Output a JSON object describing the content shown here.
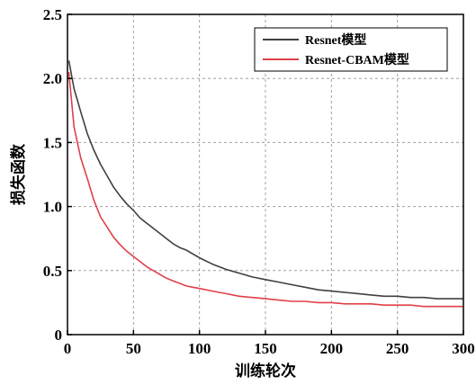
{
  "chart_data": {
    "type": "line",
    "title": "",
    "xlabel": "训练轮次",
    "ylabel": "损失函数",
    "xlim": [
      0,
      300
    ],
    "ylim": [
      0,
      2.5
    ],
    "xticks": [
      0,
      50,
      100,
      150,
      200,
      250,
      300
    ],
    "xtick_labels": [
      "0",
      "50",
      "100",
      "150",
      "200",
      "250",
      "300"
    ],
    "yticks": [
      0,
      0.5,
      1.0,
      1.5,
      2.0,
      2.5
    ],
    "ytick_labels": [
      "0",
      "0.5",
      "1.0",
      "1.5",
      "2.0",
      "2.5"
    ],
    "grid": true,
    "legend_position": "top-right",
    "x": [
      1,
      5,
      10,
      15,
      20,
      25,
      30,
      35,
      40,
      45,
      50,
      55,
      60,
      65,
      70,
      75,
      80,
      85,
      90,
      95,
      100,
      110,
      120,
      130,
      140,
      150,
      160,
      170,
      180,
      190,
      200,
      210,
      220,
      230,
      240,
      250,
      260,
      270,
      280,
      290,
      300
    ],
    "series": [
      {
        "name": "Resnet模型",
        "color": "#404040",
        "values": [
          2.14,
          1.92,
          1.74,
          1.57,
          1.44,
          1.33,
          1.24,
          1.15,
          1.08,
          1.02,
          0.97,
          0.91,
          0.87,
          0.83,
          0.79,
          0.75,
          0.71,
          0.68,
          0.66,
          0.63,
          0.6,
          0.55,
          0.51,
          0.48,
          0.45,
          0.43,
          0.41,
          0.39,
          0.37,
          0.35,
          0.34,
          0.33,
          0.32,
          0.31,
          0.3,
          0.3,
          0.29,
          0.29,
          0.28,
          0.28,
          0.28
        ]
      },
      {
        "name": "Resnet-CBAM模型",
        "color": "#e04048",
        "values": [
          2.05,
          1.62,
          1.38,
          1.22,
          1.05,
          0.92,
          0.84,
          0.76,
          0.7,
          0.65,
          0.61,
          0.57,
          0.53,
          0.5,
          0.47,
          0.44,
          0.42,
          0.4,
          0.38,
          0.37,
          0.36,
          0.34,
          0.32,
          0.3,
          0.29,
          0.28,
          0.27,
          0.26,
          0.26,
          0.25,
          0.25,
          0.24,
          0.24,
          0.24,
          0.23,
          0.23,
          0.23,
          0.22,
          0.22,
          0.22,
          0.22
        ]
      }
    ]
  }
}
